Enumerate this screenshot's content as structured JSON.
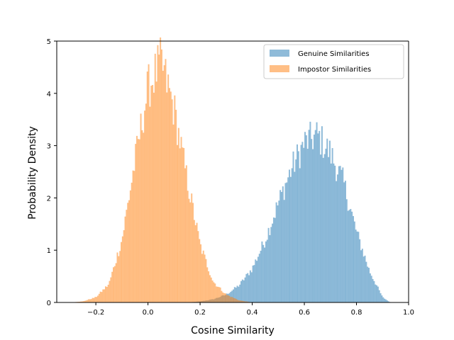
{
  "chart_data": {
    "type": "histogram",
    "xlabel": "Cosine Similarity",
    "ylabel": "Probability Density",
    "xlim": [
      -0.35,
      1.0
    ],
    "ylim": [
      0,
      5
    ],
    "x_ticks": [
      -0.2,
      0.0,
      0.2,
      0.4,
      0.6,
      0.8,
      1.0
    ],
    "x_tick_labels": [
      "−0.2",
      "0.0",
      "0.2",
      "0.4",
      "0.6",
      "0.8",
      "1.0"
    ],
    "y_ticks": [
      0,
      1,
      2,
      3,
      4,
      5
    ],
    "y_tick_labels": [
      "0",
      "1",
      "2",
      "3",
      "4",
      "5"
    ],
    "grid": false,
    "legend_position": "top-right",
    "bin_width": 0.005,
    "series": [
      {
        "name": "Genuine Similarities",
        "color": "#1f77b4",
        "opacity": 0.5,
        "profile": {
          "x": [
            0.15,
            0.2,
            0.25,
            0.3,
            0.35,
            0.4,
            0.45,
            0.5,
            0.55,
            0.6,
            0.65,
            0.7,
            0.75,
            0.8,
            0.85,
            0.9,
            0.93
          ],
          "density": [
            0.0,
            0.02,
            0.06,
            0.15,
            0.33,
            0.65,
            1.2,
            1.9,
            2.55,
            3.05,
            3.2,
            2.85,
            2.3,
            1.35,
            0.6,
            0.1,
            0.0
          ]
        }
      },
      {
        "name": "Impostor Similarities",
        "color": "#ff7f0e",
        "opacity": 0.5,
        "profile": {
          "x": [
            -0.3,
            -0.25,
            -0.2,
            -0.15,
            -0.1,
            -0.05,
            0.0,
            0.05,
            0.1,
            0.15,
            0.2,
            0.25,
            0.3,
            0.35,
            0.4
          ],
          "density": [
            0.0,
            0.02,
            0.1,
            0.35,
            1.2,
            2.7,
            4.1,
            4.6,
            3.7,
            2.35,
            1.1,
            0.4,
            0.15,
            0.04,
            0.0
          ]
        }
      }
    ]
  }
}
